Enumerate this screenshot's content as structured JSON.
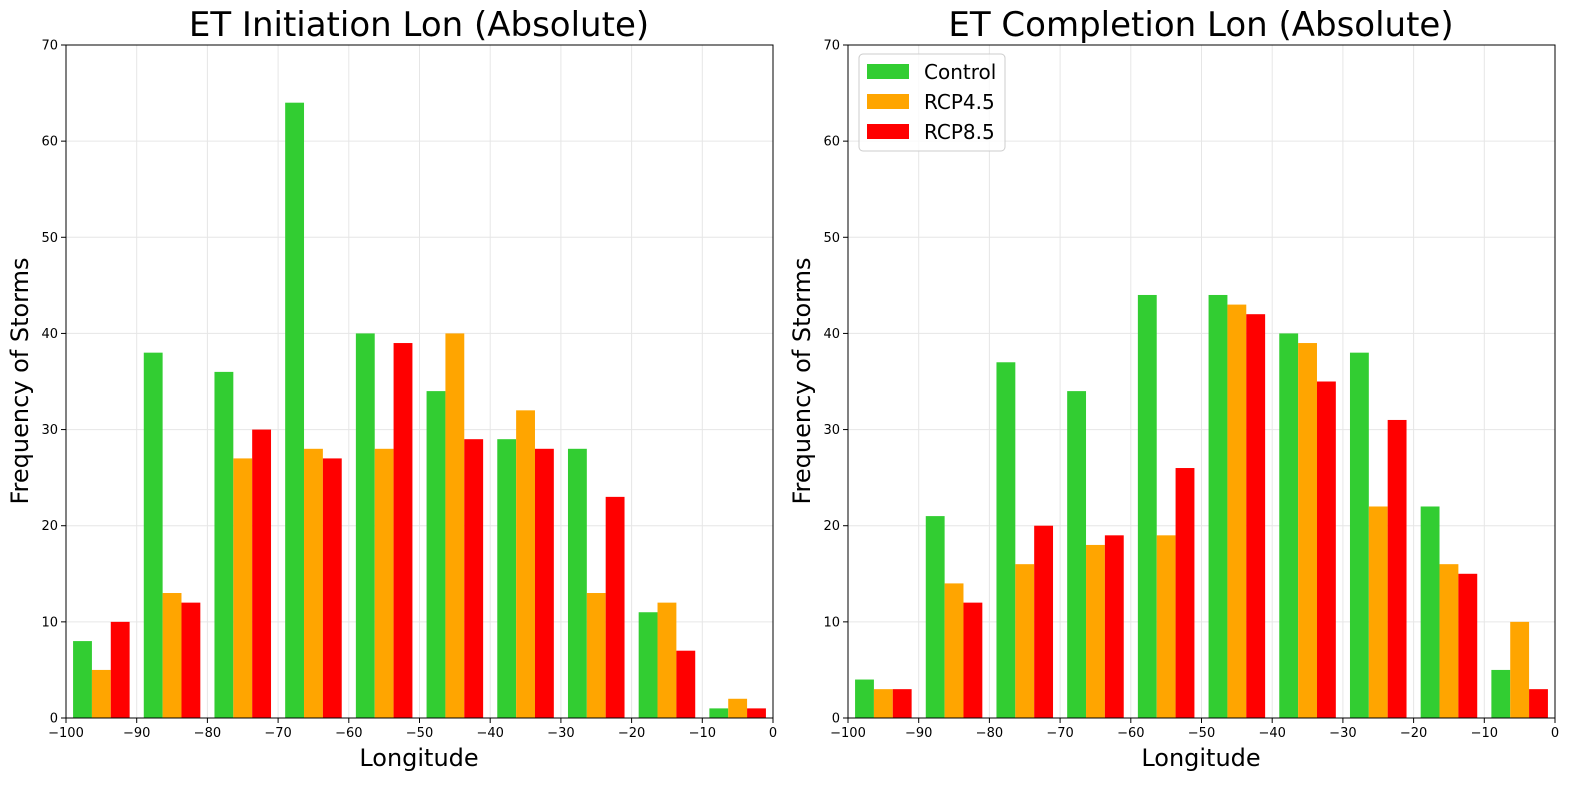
{
  "chart_data": [
    {
      "type": "bar",
      "title": "ET Initiation Lon (Absolute)",
      "xlabel": "Longitude",
      "ylabel": "Frequency of Storms",
      "xlim": [
        -100,
        0
      ],
      "ylim": [
        0,
        70
      ],
      "xticks": [
        "−100",
        "−90",
        "−80",
        "−70",
        "−60",
        "−50",
        "−40",
        "−30",
        "−20",
        "−10",
        "0"
      ],
      "yticks": [
        "0",
        "10",
        "20",
        "30",
        "40",
        "50",
        "60",
        "70"
      ],
      "grid": true,
      "bin_edges": [
        -100,
        -90,
        -80,
        -70,
        -60,
        -50,
        -40,
        -30,
        -20,
        -10,
        0
      ],
      "series": [
        {
          "name": "Control",
          "color": "#32cd32",
          "values": [
            8,
            38,
            36,
            64,
            40,
            34,
            29,
            28,
            11,
            1
          ]
        },
        {
          "name": "RCP4.5",
          "color": "#ffa500",
          "values": [
            5,
            13,
            27,
            28,
            28,
            40,
            32,
            13,
            12,
            2
          ]
        },
        {
          "name": "RCP8.5",
          "color": "#ff0000",
          "values": [
            10,
            12,
            30,
            27,
            39,
            29,
            28,
            23,
            7,
            1
          ]
        }
      ]
    },
    {
      "type": "bar",
      "title": "ET Completion Lon (Absolute)",
      "xlabel": "Longitude",
      "ylabel": "Frequency of Storms",
      "xlim": [
        -100,
        0
      ],
      "ylim": [
        0,
        70
      ],
      "xticks": [
        "−100",
        "−90",
        "−80",
        "−70",
        "−60",
        "−50",
        "−40",
        "−30",
        "−20",
        "−10",
        "0"
      ],
      "yticks": [
        "0",
        "10",
        "20",
        "30",
        "40",
        "50",
        "60",
        "70"
      ],
      "grid": true,
      "legend": "top-left",
      "bin_edges": [
        -100,
        -90,
        -80,
        -70,
        -60,
        -50,
        -40,
        -30,
        -20,
        -10,
        0
      ],
      "series": [
        {
          "name": "Control",
          "color": "#32cd32",
          "values": [
            4,
            21,
            37,
            34,
            44,
            44,
            40,
            38,
            22,
            5
          ]
        },
        {
          "name": "RCP4.5",
          "color": "#ffa500",
          "values": [
            3,
            14,
            16,
            18,
            19,
            43,
            39,
            22,
            16,
            10
          ]
        },
        {
          "name": "RCP8.5",
          "color": "#ff0000",
          "values": [
            3,
            12,
            20,
            19,
            26,
            42,
            35,
            31,
            15,
            3
          ]
        }
      ]
    }
  ]
}
